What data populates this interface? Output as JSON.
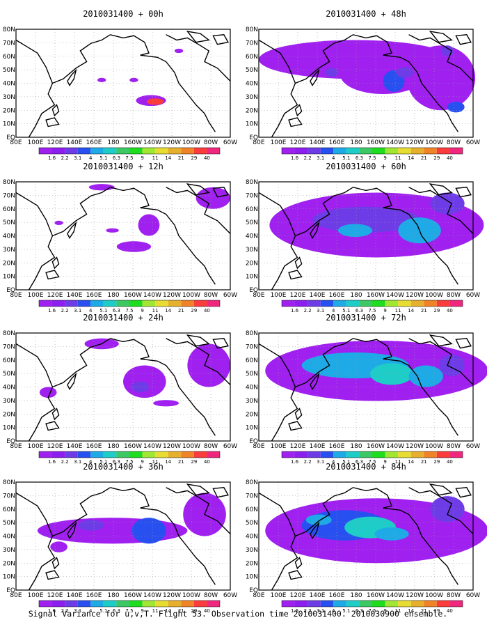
{
  "caption": "Signal Variance for u,v,T. Flight 53. Observation time 2010031400. 2010030900 ensemble.",
  "lon_labels": [
    "80E",
    "100E",
    "120E",
    "140E",
    "160E",
    "180",
    "160W",
    "140W",
    "120W",
    "100W",
    "80W",
    "60W"
  ],
  "lat_labels": [
    "80N",
    "70N",
    "60N",
    "50N",
    "40N",
    "30N",
    "20N",
    "10N",
    "EQ"
  ],
  "colorbar": {
    "labels": [
      "1.6",
      "2.2",
      "3.1",
      "4",
      "5.1",
      "6.3",
      "7.5",
      "9",
      "11",
      "14",
      "21",
      "29",
      "40"
    ],
    "colors": [
      "#a020f0",
      "#8c1ef0",
      "#6e3ce6",
      "#2850f0",
      "#1eaae6",
      "#1ecdc8",
      "#3cc864",
      "#1edc1e",
      "#a0e632",
      "#e6dc32",
      "#e6af2d",
      "#f08228",
      "#fa3c3c",
      "#f0287d"
    ]
  },
  "panels": [
    {
      "title": "2010031400 + 00h"
    },
    {
      "title": "2010031400 + 48h"
    },
    {
      "title": "2010031400 + 12h"
    },
    {
      "title": "2010031400 + 60h"
    },
    {
      "title": "2010031400 + 24h"
    },
    {
      "title": "2010031400 + 72h"
    },
    {
      "title": "2010031400 + 36h"
    },
    {
      "title": "2010031400 + 84h"
    }
  ]
}
